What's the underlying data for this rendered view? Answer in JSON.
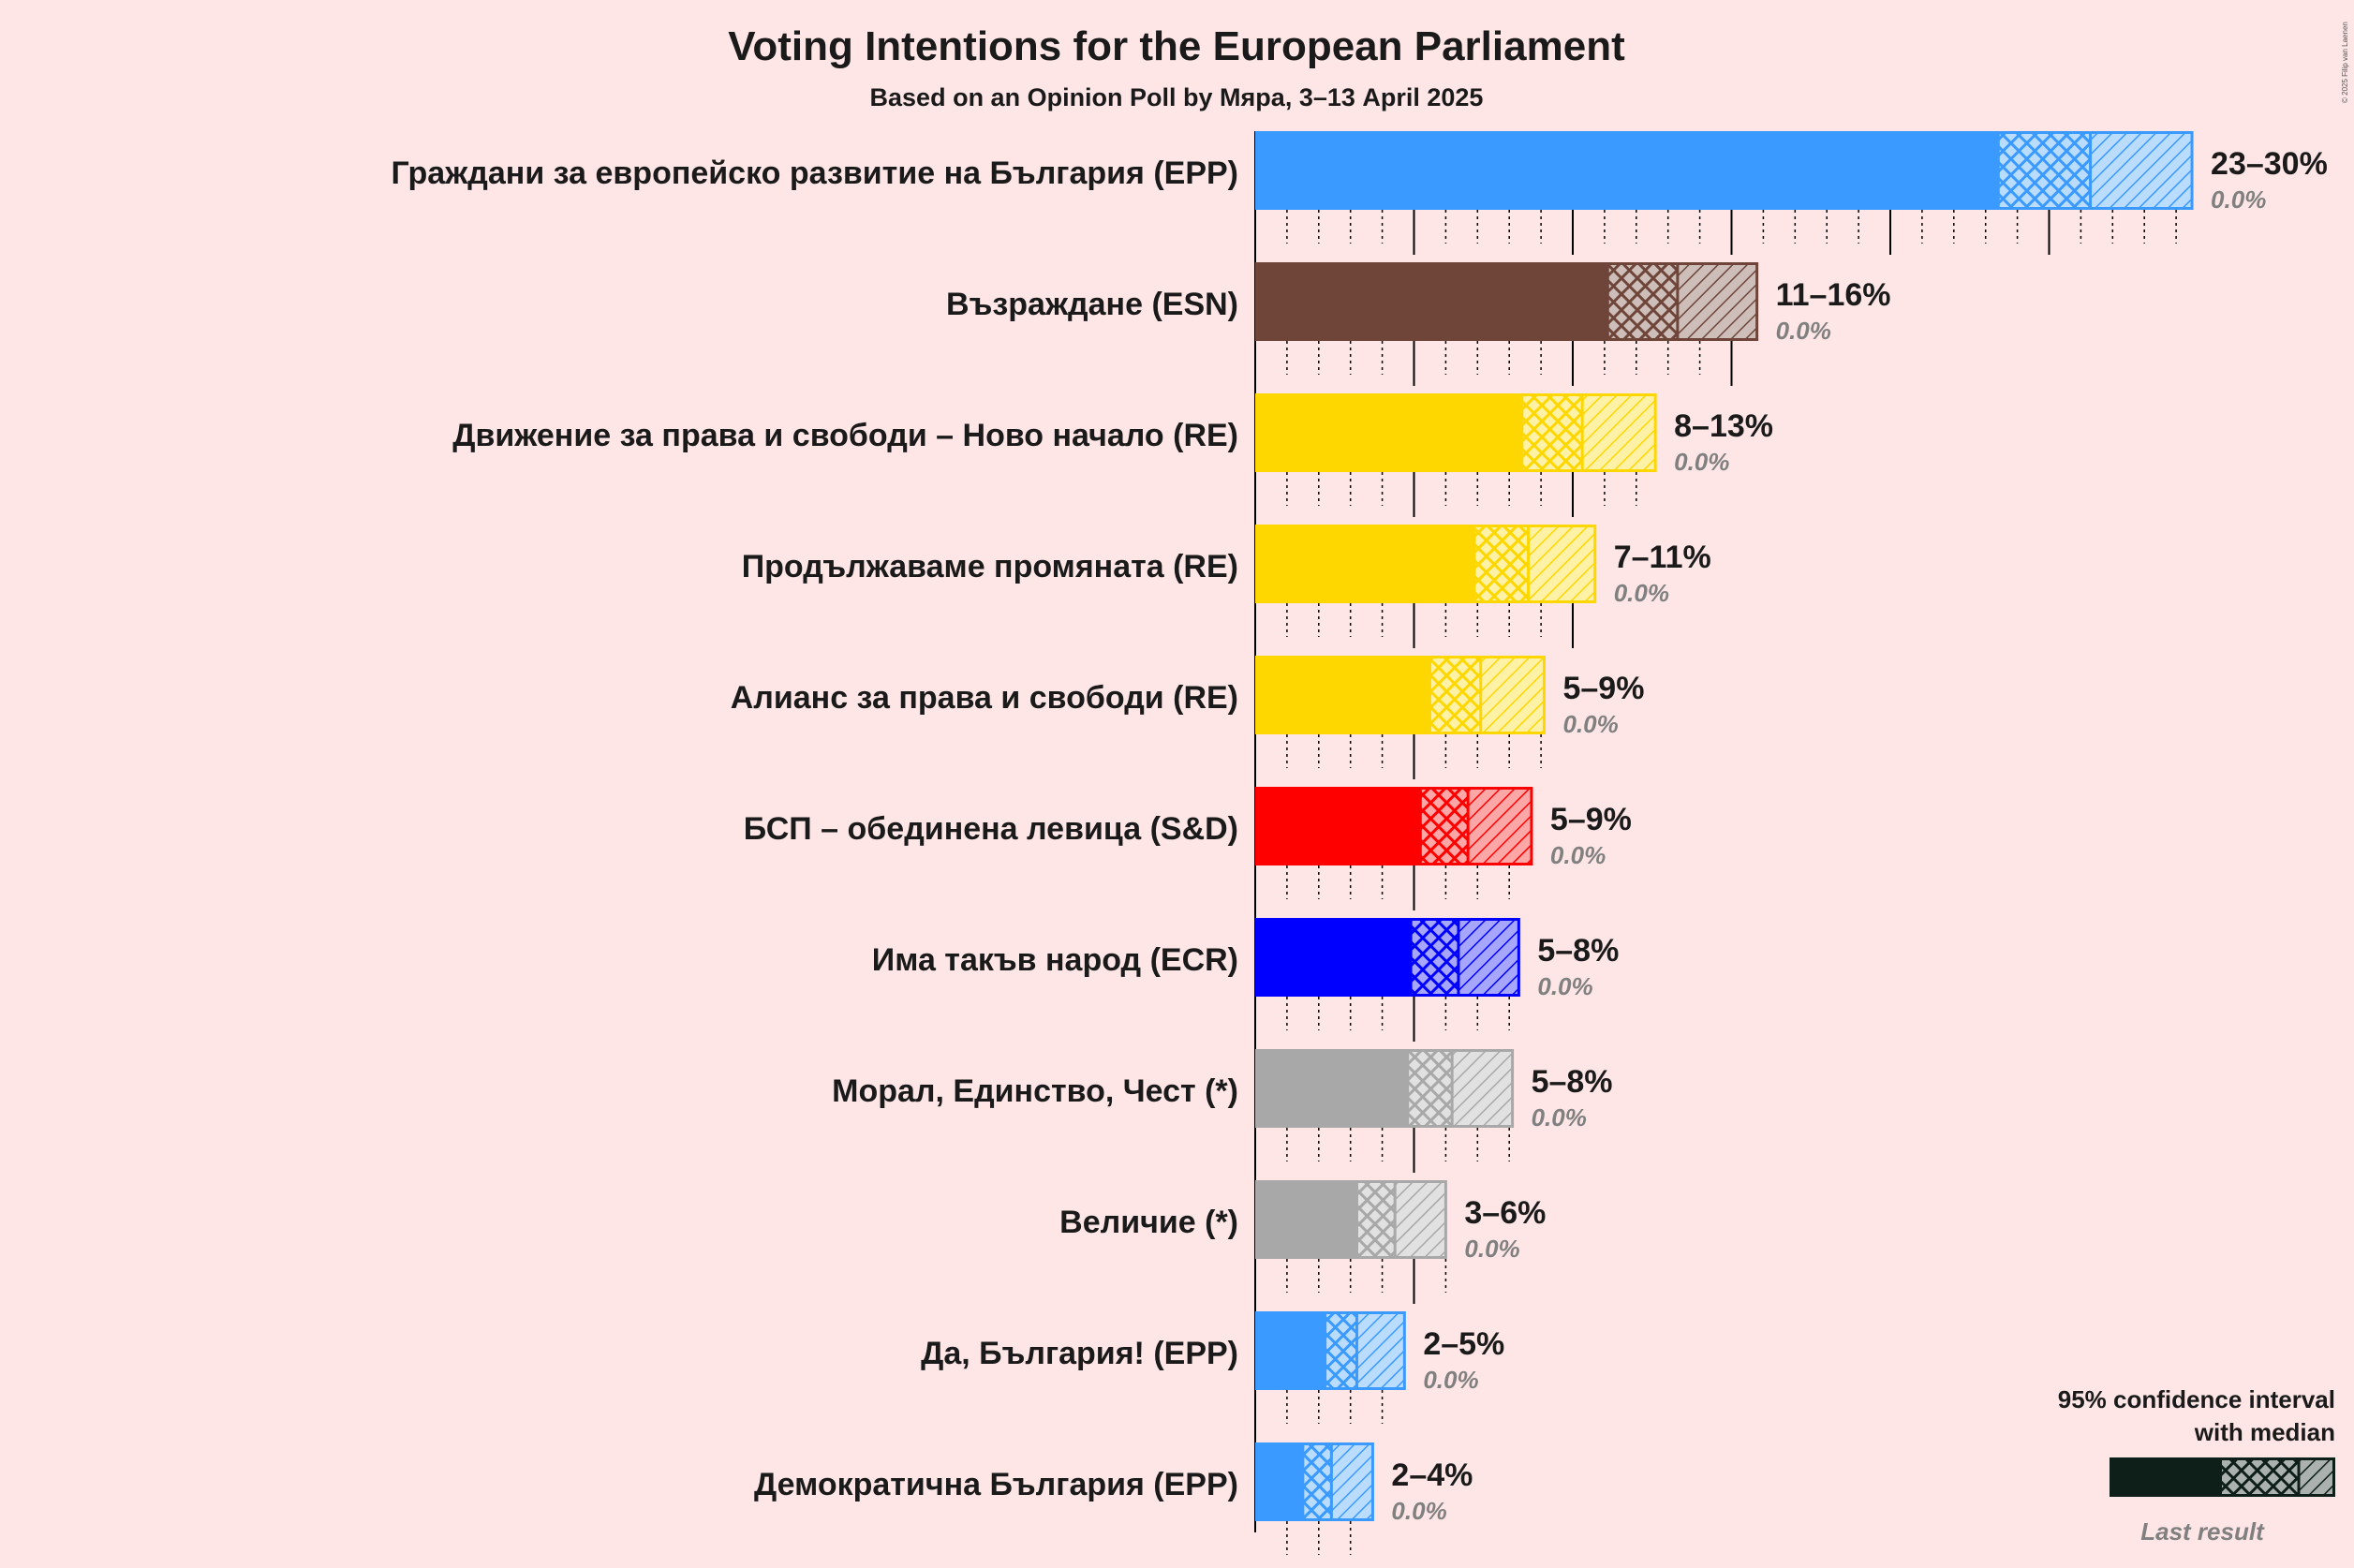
{
  "chart_data": {
    "type": "bar",
    "title": "Voting Intentions for the European Parliament",
    "subtitle": "Based on an Opinion Poll by Мяра, 3–13 April 2025",
    "copyright": "© 2025 Filip van Laenen",
    "xlabel": "",
    "ylabel": "",
    "xlim": [
      0,
      30
    ],
    "parties": [
      {
        "name": "Граждани за европейско развитие на България (EPP)",
        "color": "#3A9AFF",
        "ci_low": 23.4,
        "median": 26.3,
        "ci_high": 29.5,
        "range_label": "23–30%",
        "last_result": "0.0%"
      },
      {
        "name": "Възраждане (ESN)",
        "color": "#6F453A",
        "ci_low": 11.1,
        "median": 13.3,
        "ci_high": 15.8,
        "range_label": "11–16%",
        "last_result": "0.0%"
      },
      {
        "name": "Движение за права и свободи – Ново начало (RE)",
        "color": "#FFD700",
        "ci_low": 8.4,
        "median": 10.3,
        "ci_high": 12.6,
        "range_label": "8–13%",
        "last_result": "0.0%"
      },
      {
        "name": "Продължаваме промяната (RE)",
        "color": "#FFD700",
        "ci_low": 6.9,
        "median": 8.6,
        "ci_high": 10.7,
        "range_label": "7–11%",
        "last_result": "0.0%"
      },
      {
        "name": "Алианс за права и свободи (RE)",
        "color": "#FFD700",
        "ci_low": 5.5,
        "median": 7.1,
        "ci_high": 9.1,
        "range_label": "5–9%",
        "last_result": "0.0%"
      },
      {
        "name": "БСП – обединена левица (S&D)",
        "color": "#FF0000",
        "ci_low": 5.2,
        "median": 6.7,
        "ci_high": 8.7,
        "range_label": "5–9%",
        "last_result": "0.0%"
      },
      {
        "name": "Има такъв народ (ECR)",
        "color": "#0000FF",
        "ci_low": 4.9,
        "median": 6.4,
        "ci_high": 8.3,
        "range_label": "5–8%",
        "last_result": "0.0%"
      },
      {
        "name": "Морал, Единство, Чест (*)",
        "color": "#A8A8A8",
        "ci_low": 4.8,
        "median": 6.2,
        "ci_high": 8.1,
        "range_label": "5–8%",
        "last_result": "0.0%"
      },
      {
        "name": "Величие (*)",
        "color": "#A8A8A8",
        "ci_low": 3.2,
        "median": 4.4,
        "ci_high": 6.0,
        "range_label": "3–6%",
        "last_result": "0.0%"
      },
      {
        "name": "Да, България! (EPP)",
        "color": "#3A9AFF",
        "ci_low": 2.2,
        "median": 3.2,
        "ci_high": 4.7,
        "range_label": "2–5%",
        "last_result": "0.0%"
      },
      {
        "name": "Демократична България (EPP)",
        "color": "#3A9AFF",
        "ci_low": 1.5,
        "median": 2.4,
        "ci_high": 3.7,
        "range_label": "2–4%",
        "last_result": "0.0%"
      }
    ],
    "legend": {
      "line1": "95% confidence interval",
      "line2": "with median",
      "last_result_label": "Last result",
      "color": "#0E1F1A",
      "last_color": "#808080"
    }
  }
}
